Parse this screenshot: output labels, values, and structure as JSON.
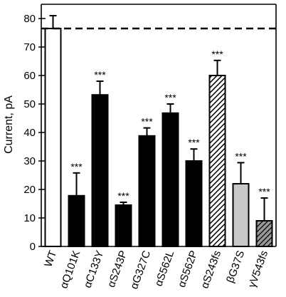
{
  "chart_data": {
    "type": "bar",
    "ylabel": "Current, pA",
    "ylim": [
      0,
      85
    ],
    "yticks": [
      0,
      10,
      20,
      30,
      40,
      50,
      60,
      70,
      80
    ],
    "reference_line": {
      "value": 76.5,
      "style": "dashed"
    },
    "significance_label": "***",
    "bars": [
      {
        "label": "WT",
        "value": 76.5,
        "error": 4.5,
        "fill": "white",
        "significance": ""
      },
      {
        "label": "αQ101K",
        "value": 17.8,
        "error": 8.0,
        "fill": "black",
        "significance": "***"
      },
      {
        "label": "αC133Y",
        "value": 53.2,
        "error": 4.8,
        "fill": "black",
        "significance": "***"
      },
      {
        "label": "αS243P",
        "value": 14.5,
        "error": 1.0,
        "fill": "black",
        "significance": "***"
      },
      {
        "label": "αG327C",
        "value": 38.8,
        "error": 2.8,
        "fill": "black",
        "significance": "***"
      },
      {
        "label": "αS562L",
        "value": 46.8,
        "error": 3.2,
        "fill": "black",
        "significance": "***"
      },
      {
        "label": "αS562P",
        "value": 30.0,
        "error": 4.2,
        "fill": "black",
        "significance": "***"
      },
      {
        "label": "αS243fs",
        "value": 60.0,
        "error": 5.3,
        "fill": "hatched-white",
        "significance": "***"
      },
      {
        "label": "βG37S",
        "value": 22.0,
        "error": 7.4,
        "fill": "lightgray",
        "significance": "***"
      },
      {
        "label": "γV543fs",
        "value": 9.0,
        "error": 8.0,
        "fill": "hatched-gray",
        "significance": "***"
      }
    ]
  }
}
